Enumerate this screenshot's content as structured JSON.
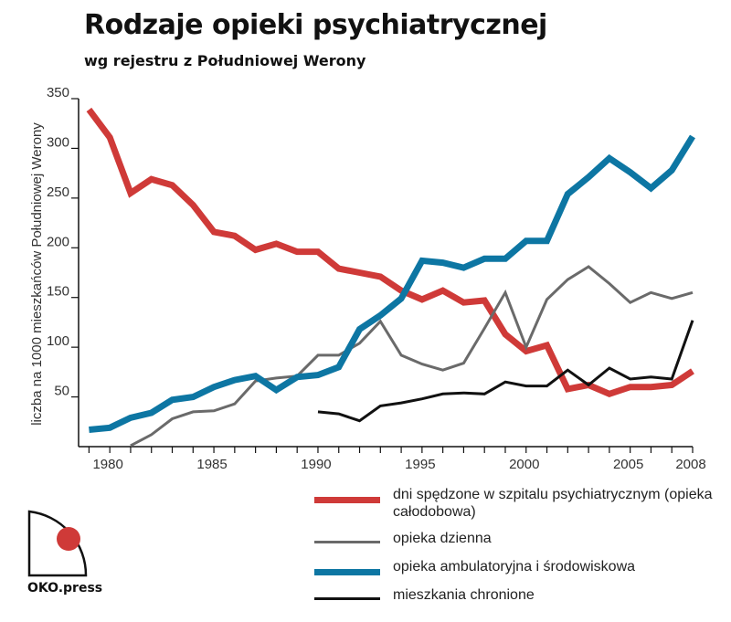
{
  "title": "Rodzaje opieki psychiatrycznej",
  "subtitle": "wg rejestru z Południowej Werony",
  "logo_text": "OKO.press",
  "chart_data": {
    "type": "line",
    "ylabel": "liczba na 1000 mieszkańców Południowej Werony",
    "ylim": [
      0,
      350
    ],
    "xlim": [
      1978.5,
      2008
    ],
    "yticks": [
      50,
      100,
      150,
      200,
      250,
      300,
      350
    ],
    "xticks": [
      1980,
      1985,
      1990,
      1995,
      2000,
      2005,
      2008
    ],
    "grid": false,
    "legend_position": "bottom-right",
    "series": [
      {
        "name": "dni spędzone w szpitalu psychiatrycznym (opieka całodobowa)",
        "color": "#cf3a38",
        "x": [
          1979,
          1980,
          1981,
          1982,
          1983,
          1984,
          1985,
          1986,
          1987,
          1988,
          1989,
          1990,
          1991,
          1992,
          1993,
          1994,
          1995,
          1996,
          1997,
          1998,
          1999,
          2000,
          2001,
          2002,
          2003,
          2004,
          2005,
          2006,
          2007,
          2008
        ],
        "values": [
          339,
          311,
          255,
          269,
          263,
          243,
          216,
          212,
          198,
          204,
          196,
          196,
          179,
          175,
          171,
          157,
          148,
          157,
          145,
          147,
          113,
          96,
          102,
          58,
          62,
          53,
          60,
          60,
          62,
          76
        ]
      },
      {
        "name": "opieka dzienna",
        "color": "#6a6a6a",
        "x": [
          1981,
          1982,
          1983,
          1984,
          1985,
          1986,
          1987,
          1988,
          1989,
          1990,
          1991,
          1992,
          1993,
          1994,
          1995,
          1996,
          1997,
          1998,
          1999,
          2000,
          2001,
          2002,
          2003,
          2004,
          2005,
          2006,
          2007,
          2008
        ],
        "values": [
          1,
          12,
          28,
          35,
          36,
          43,
          66,
          69,
          71,
          92,
          92,
          104,
          126,
          92,
          83,
          77,
          84,
          119,
          155,
          100,
          148,
          168,
          181,
          164,
          145,
          155,
          149,
          155
        ]
      },
      {
        "name": "opieka ambulatoryjna i środowiskowa",
        "color": "#0d76a3",
        "x": [
          1979,
          1980,
          1981,
          1982,
          1983,
          1984,
          1985,
          1986,
          1987,
          1988,
          1989,
          1990,
          1991,
          1992,
          1993,
          1994,
          1995,
          1996,
          1997,
          1998,
          1999,
          2000,
          2001,
          2002,
          2003,
          2004,
          2005,
          2006,
          2007,
          2008
        ],
        "values": [
          17,
          19,
          29,
          34,
          47,
          50,
          60,
          67,
          71,
          57,
          70,
          72,
          80,
          118,
          132,
          149,
          187,
          185,
          180,
          189,
          189,
          207,
          207,
          254,
          271,
          290,
          276,
          260,
          278,
          312
        ]
      },
      {
        "name": "mieszkania chronione",
        "color": "#111111",
        "x": [
          1990,
          1991,
          1992,
          1993,
          1994,
          1995,
          1996,
          1997,
          1998,
          1999,
          2000,
          2001,
          2002,
          2003,
          2004,
          2005,
          2006,
          2007,
          2008
        ],
        "values": [
          35,
          33,
          26,
          41,
          44,
          48,
          53,
          54,
          53,
          65,
          61,
          61,
          77,
          62,
          79,
          68,
          70,
          68,
          127
        ]
      }
    ]
  }
}
